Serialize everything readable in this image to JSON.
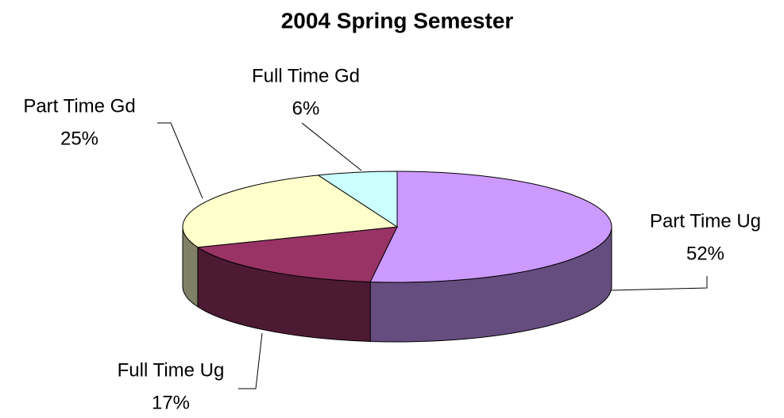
{
  "chart_data": {
    "type": "pie",
    "title": "2004 Spring Semester",
    "categories": [
      "Part Time Ug",
      "Full Time Ug",
      "Part Time Gd",
      "Full Time Gd"
    ],
    "values": [
      52,
      17,
      25,
      6
    ],
    "value_labels": [
      "52%",
      "17%",
      "25%",
      "6%"
    ],
    "colors": [
      "#cc99ff",
      "#993366",
      "#ffffcc",
      "#ccffff"
    ]
  }
}
